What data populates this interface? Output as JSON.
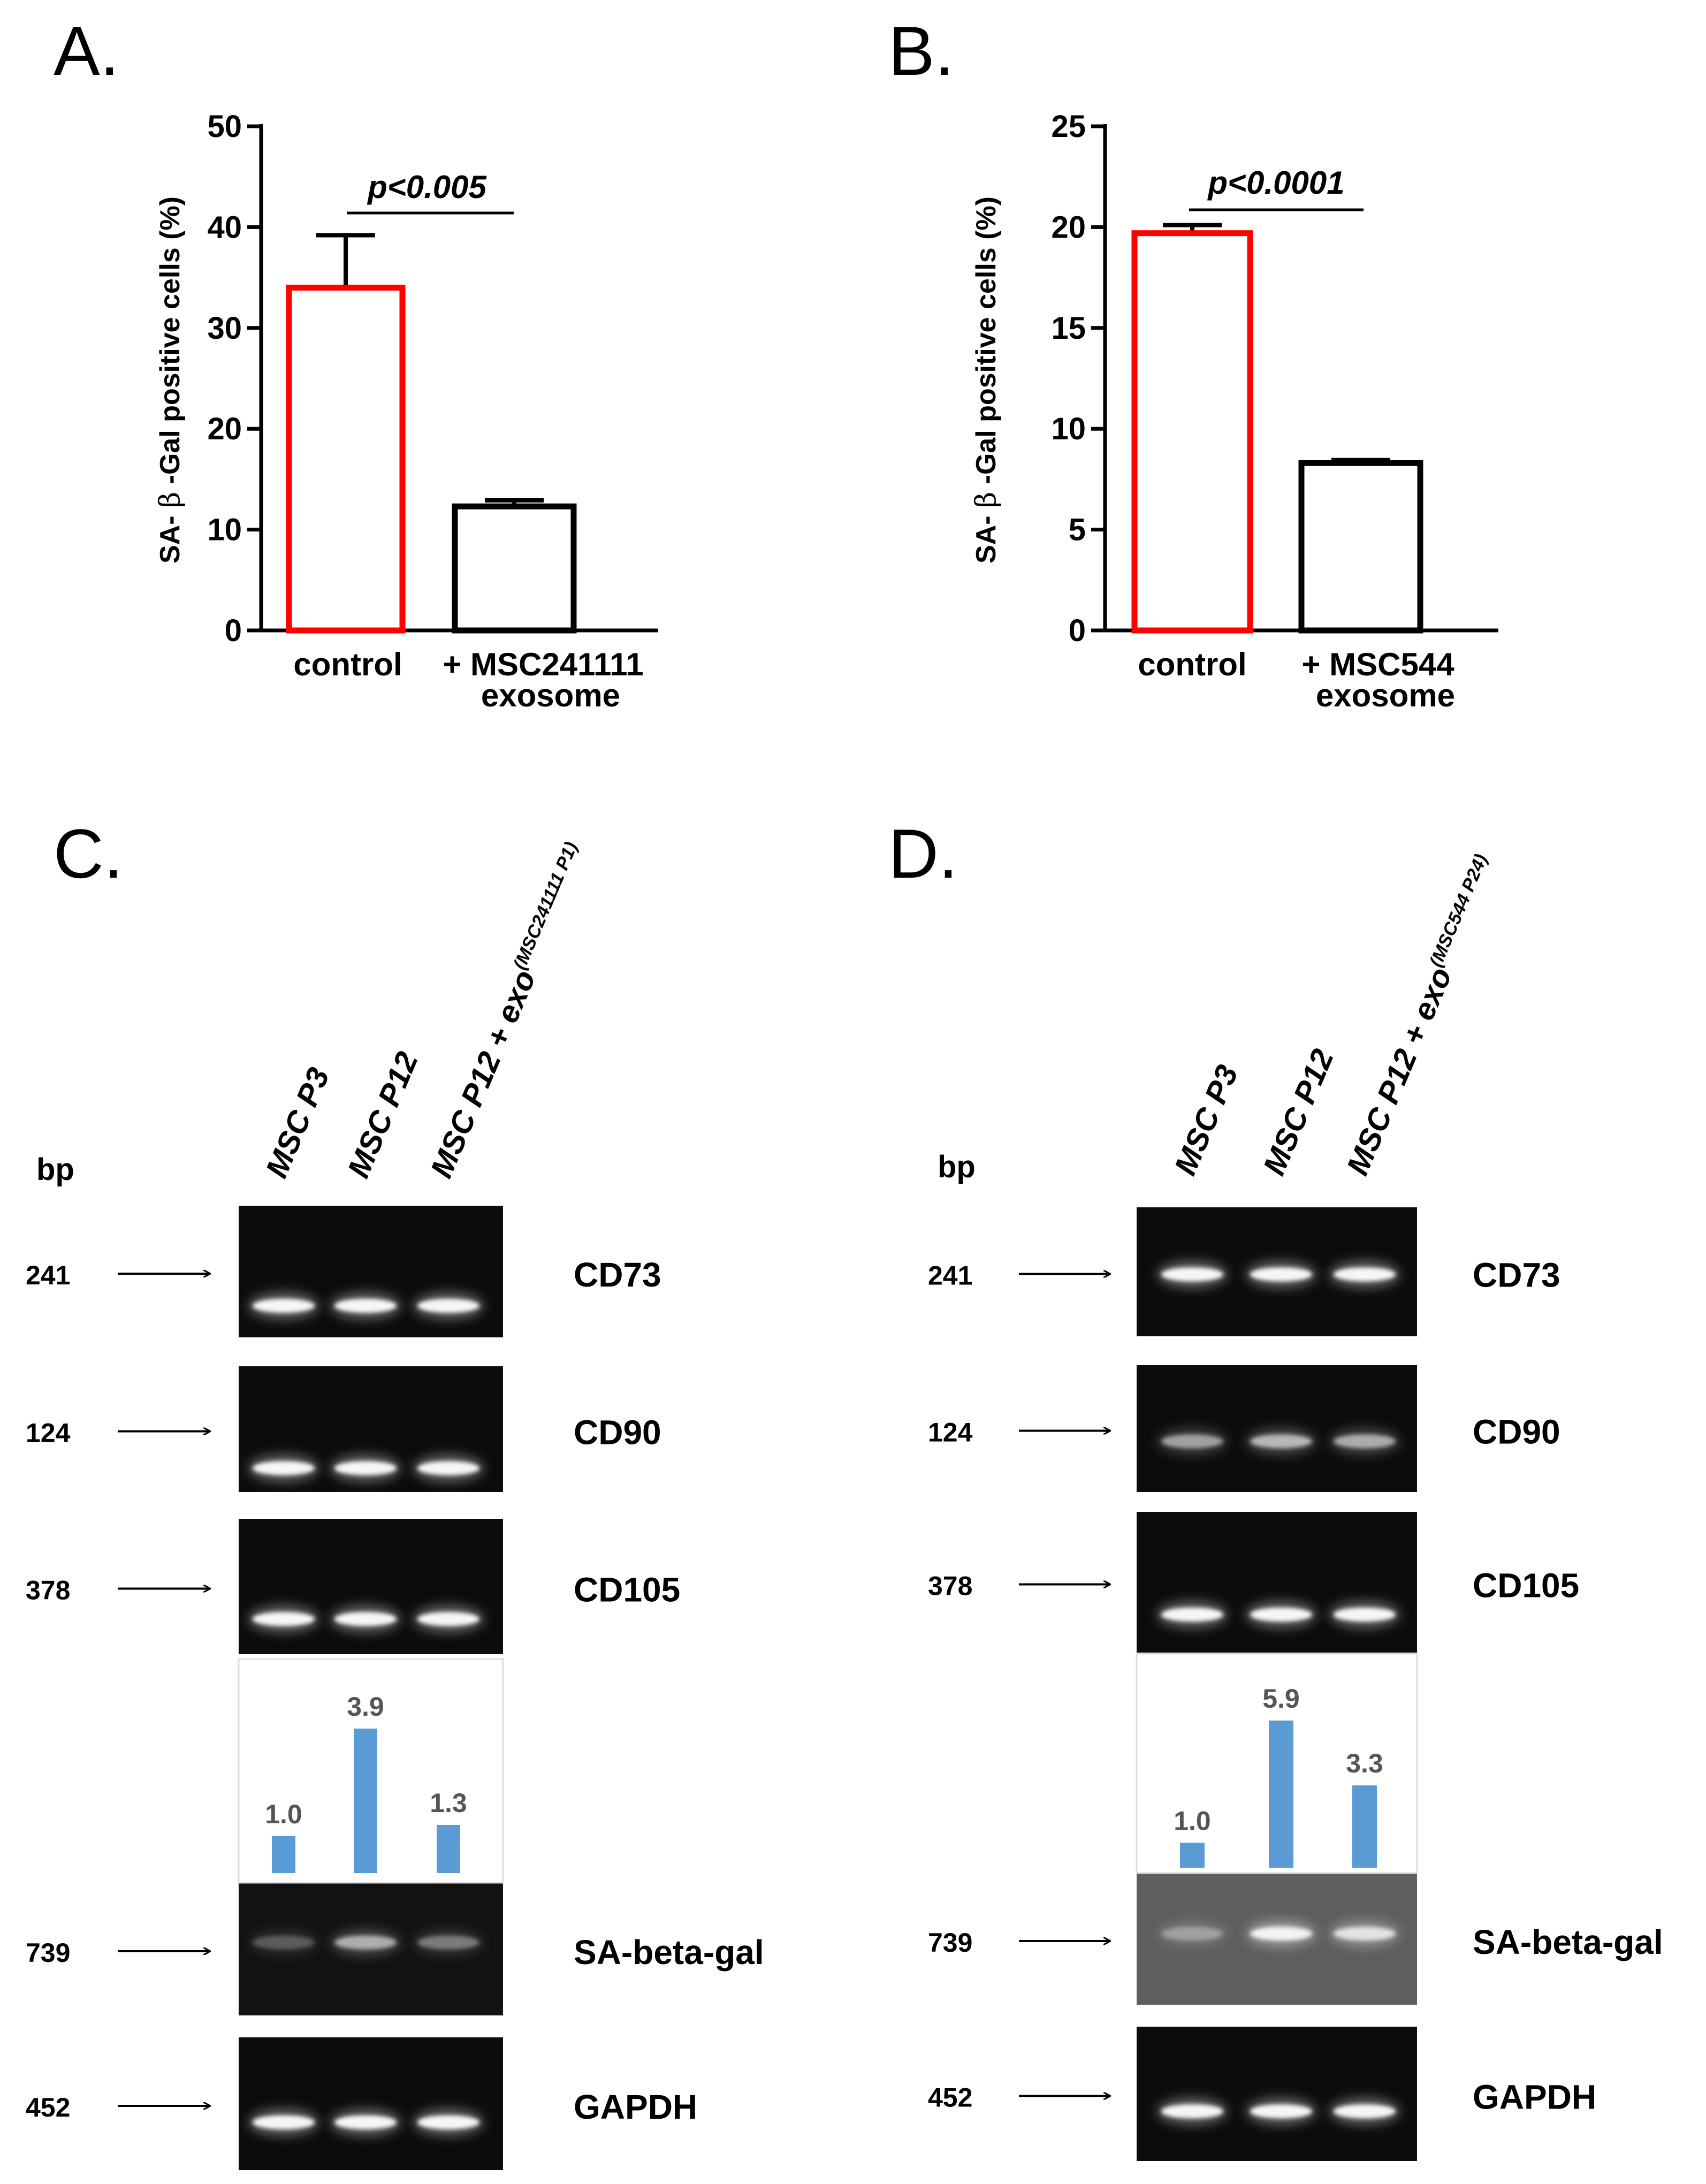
{
  "chart_data": [
    {
      "panel_label": "A.",
      "type": "bar",
      "ylabel_prefix": "SA- ",
      "ylabel_greek": "β",
      "ylabel_suffix": " -Gal positive cells (%)",
      "ylim": [
        0,
        50
      ],
      "yticks": [
        "0",
        "10",
        "20",
        "30",
        "40",
        "50"
      ],
      "categories": [
        "control",
        "+ MSC241111 exosome"
      ],
      "category_lines": [
        [
          "control"
        ],
        [
          "+ MSC241111",
          "exosome"
        ]
      ],
      "values": [
        34,
        12.3
      ],
      "errors": [
        5.2,
        0.6
      ],
      "bar_colors": [
        "#ff0000",
        "#000000"
      ],
      "significance": "p<0.005",
      "grid": false
    },
    {
      "panel_label": "B.",
      "type": "bar",
      "ylabel_prefix": "SA- ",
      "ylabel_greek": "β",
      "ylabel_suffix": " -Gal positive cells (%)",
      "ylim": [
        0,
        25
      ],
      "yticks": [
        "0",
        "5",
        "10",
        "15",
        "20",
        "25"
      ],
      "categories": [
        "control",
        "+ MSC544 exosome"
      ],
      "category_lines": [
        [
          "control"
        ],
        [
          "+ MSC544",
          "exosome"
        ]
      ],
      "values": [
        19.7,
        8.3
      ],
      "errors": [
        0.4,
        0.15
      ],
      "bar_colors": [
        "#ff0000",
        "#000000"
      ],
      "significance": "p<0.0001",
      "grid": false
    },
    {
      "panel_label": "C.",
      "type": "bar",
      "lane_labels": [
        {
          "main": "MSC P3",
          "sup": ""
        },
        {
          "main": "MSC P12",
          "sup": ""
        },
        {
          "main": "MSC P12 + exo",
          "sup": "(MSC241111 P1)"
        }
      ],
      "categories": [
        "MSC P3",
        "MSC P12",
        "MSC P12 + exo(MSC241111 P1)"
      ],
      "values": [
        1.0,
        3.9,
        1.3
      ],
      "value_labels": [
        "1.0",
        "3.9",
        "1.3"
      ],
      "bar_color": "#5b9bd5",
      "gel": {
        "bp_header": "bp",
        "rows": [
          {
            "bp": "241",
            "gene": "CD73"
          },
          {
            "bp": "124",
            "gene": "CD90"
          },
          {
            "bp": "378",
            "gene": "CD105"
          },
          {
            "bp": "739",
            "gene": "SA-beta-gal"
          },
          {
            "bp": "452",
            "gene": "GAPDH"
          }
        ]
      }
    },
    {
      "panel_label": "D.",
      "type": "bar",
      "lane_labels": [
        {
          "main": "MSC P3",
          "sup": ""
        },
        {
          "main": "MSC P12",
          "sup": ""
        },
        {
          "main": "MSC P12 + exo",
          "sup": "(MSC544 P24)"
        }
      ],
      "categories": [
        "MSC P3",
        "MSC P12",
        "MSC P12 + exo(MSC544 P24)"
      ],
      "values": [
        1.0,
        5.9,
        3.3
      ],
      "value_labels": [
        "1.0",
        "5.9",
        "3.3"
      ],
      "bar_color": "#5b9bd5",
      "gel": {
        "bp_header": "bp",
        "rows": [
          {
            "bp": "241",
            "gene": "CD73"
          },
          {
            "bp": "124",
            "gene": "CD90"
          },
          {
            "bp": "378",
            "gene": "CD105"
          },
          {
            "bp": "739",
            "gene": "SA-beta-gal"
          },
          {
            "bp": "452",
            "gene": "GAPDH"
          }
        ]
      }
    }
  ]
}
